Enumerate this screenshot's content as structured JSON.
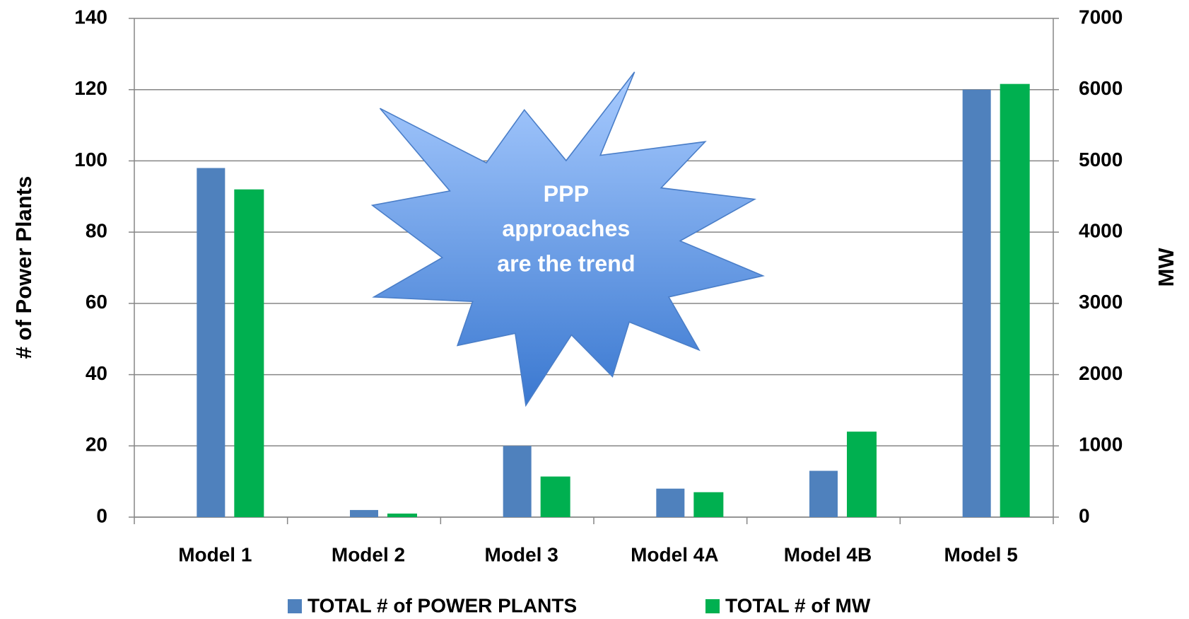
{
  "chart_data": {
    "type": "bar",
    "categories": [
      "Model 1",
      "Model 2",
      "Model 3",
      "Model 4A",
      "Model 4B",
      "Model 5"
    ],
    "series": [
      {
        "name": "TOTAL # of POWER PLANTS",
        "color": "#4f81bd",
        "values": [
          98,
          2,
          20,
          8,
          13,
          120
        ]
      },
      {
        "name": "TOTAL # of MW",
        "color": "#00b050",
        "axis": "y2",
        "values": [
          4600,
          50,
          570,
          350,
          1200,
          6080
        ]
      }
    ],
    "ylabel": "# of Power Plants",
    "y2label": "MW",
    "ylim": [
      0,
      140
    ],
    "yticks": [
      0,
      20,
      40,
      60,
      80,
      100,
      120,
      140
    ],
    "y2lim": [
      0,
      7000
    ],
    "y2ticks": [
      0,
      1000,
      2000,
      3000,
      4000,
      5000,
      6000,
      7000
    ],
    "grid": true,
    "legend": "bottom",
    "annotation": [
      "PPP",
      "approaches",
      "are the trend"
    ]
  }
}
